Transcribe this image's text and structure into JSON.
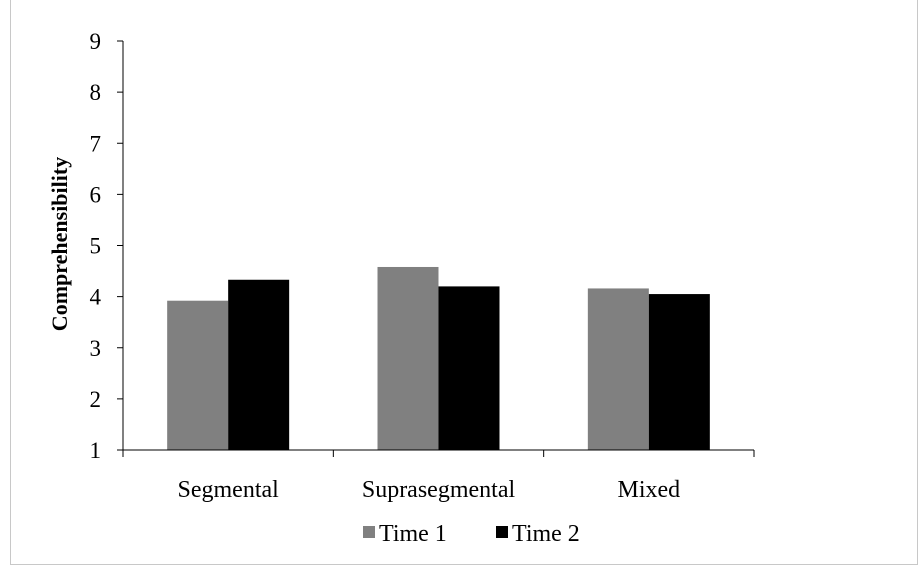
{
  "chart_data": {
    "type": "bar",
    "title": "",
    "xlabel": "",
    "ylabel": "Comprehensibility",
    "ylim": [
      1,
      9
    ],
    "yticks": [
      "1",
      "2",
      "3",
      "4",
      "5",
      "6",
      "7",
      "8",
      "9"
    ],
    "categories": [
      "Segmental",
      "Suprasegmental",
      "Mixed"
    ],
    "series": [
      {
        "name": "Time 1",
        "color": "#808080",
        "values": [
          3.92,
          4.58,
          4.16
        ]
      },
      {
        "name": "Time 2",
        "color": "#000000",
        "values": [
          4.33,
          4.2,
          4.05
        ]
      }
    ],
    "grid": false,
    "legend_position": "bottom"
  }
}
